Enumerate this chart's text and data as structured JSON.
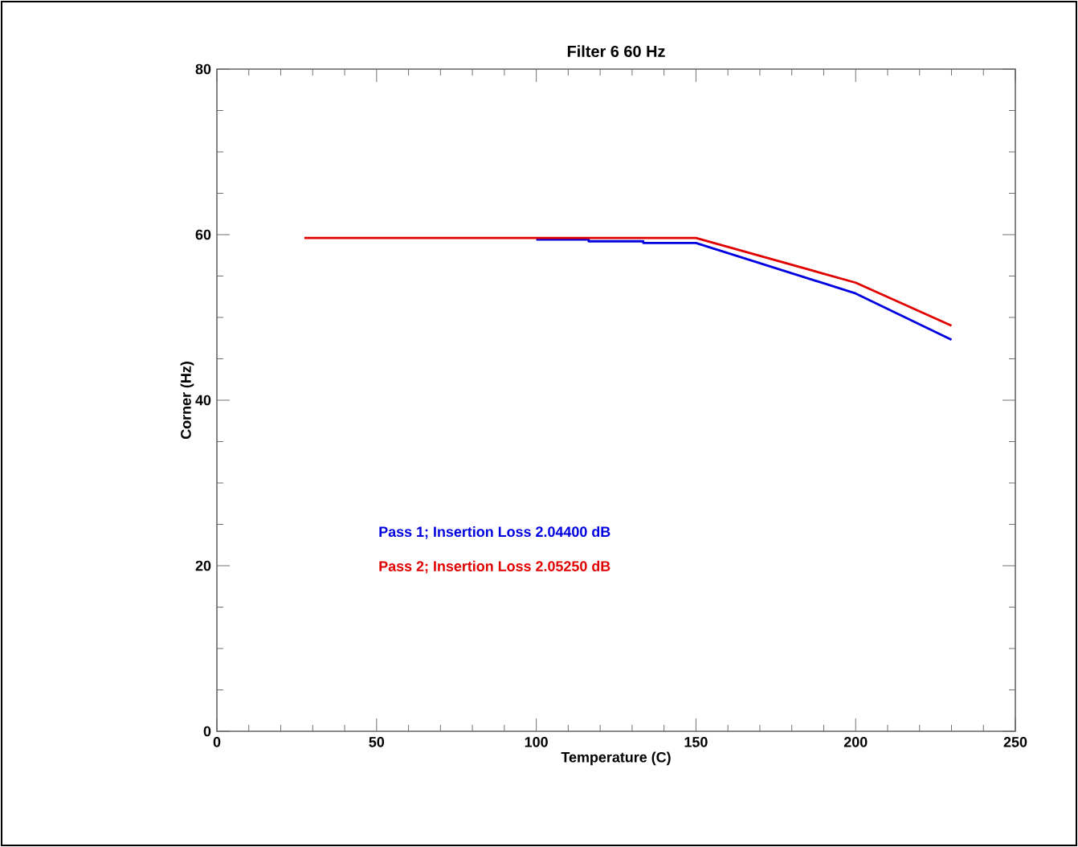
{
  "chart_data": {
    "type": "line",
    "title": "Filter 6  60 Hz",
    "xlabel": "Temperature (C)",
    "ylabel": "Corner  (Hz)",
    "xlim": [
      0,
      250
    ],
    "ylim": [
      0,
      80
    ],
    "xticks": [
      0,
      50,
      100,
      150,
      200,
      250
    ],
    "yticks": [
      0,
      20,
      40,
      60,
      80
    ],
    "grid": false,
    "legend": "bottom left",
    "marker": "none",
    "line_style": "solid",
    "series": [
      {
        "name": "Pass 1; Insertion Loss 2.04400 dB",
        "color": "#0000e0",
        "x": [
          100,
          116.4,
          116.4,
          133.5,
          133.5,
          150,
          200,
          230
        ],
        "values": [
          59.4,
          59.4,
          59.2,
          59.2,
          59.0,
          59.0,
          52.9,
          47.3
        ]
      },
      {
        "name": "Pass 2; Insertion Loss 2.05250 dB",
        "color": "#e00000",
        "x": [
          27.4,
          150,
          200,
          230
        ],
        "values": [
          59.6,
          59.6,
          54.2,
          49.0
        ]
      }
    ]
  }
}
